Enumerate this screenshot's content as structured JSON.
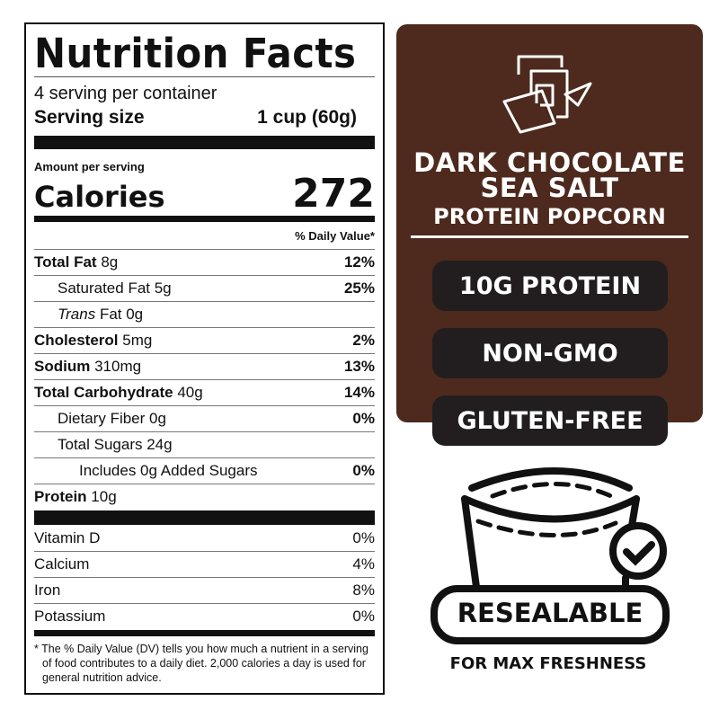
{
  "nutrition": {
    "title": "Nutrition Facts",
    "servings": "4 serving per container",
    "serving_size_label": "Serving size",
    "serving_size_value": "1 cup (60g)",
    "amount_per_serving": "Amount per serving",
    "calories_label": "Calories",
    "calories_value": "272",
    "dv_header": "% Daily Value*",
    "rows": [
      {
        "bold": "Total Fat",
        "amount": "8g",
        "dv": "12%"
      },
      {
        "label": "Saturated Fat 5g",
        "dv": "25%"
      },
      {
        "italic": "Trans",
        "label": "Fat 0g",
        "dv": ""
      },
      {
        "bold": "Cholesterol",
        "amount": "5mg",
        "dv": "2%"
      },
      {
        "bold": "Sodium",
        "amount": "310mg",
        "dv": "13%"
      },
      {
        "bold": "Total Carbohydrate",
        "amount": "40g",
        "dv": "14%"
      },
      {
        "label": "Dietary Fiber 0g",
        "dv": "0%"
      },
      {
        "label": "Total Sugars 24g",
        "dv": ""
      },
      {
        "label": "Includes 0g Added Sugars",
        "dv": "0%"
      },
      {
        "bold": "Protein",
        "amount": "10g",
        "dv": ""
      }
    ],
    "vitamins": [
      {
        "label": "Vitamin D",
        "dv": "0%"
      },
      {
        "label": "Calcium",
        "dv": "4%"
      },
      {
        "label": "Iron",
        "dv": "8%"
      },
      {
        "label": "Potassium",
        "dv": "0%"
      }
    ],
    "footnote": "* The % Daily Value (DV) tells you how much a nutrient in a serving of food contributes to a daily diet. 2,000 calories a day is used for general nutrition advice."
  },
  "product": {
    "line1": "DARK CHOCOLATE",
    "line2": "SEA SALT",
    "line3": "PROTEIN POPCORN",
    "badges": [
      "10G PROTEIN",
      "NON-GMO",
      "GLUTEN-FREE"
    ],
    "brown_color": "#4d2a1d",
    "icon": "chocolate-pieces-icon"
  },
  "reseal": {
    "label": "RESEALABLE",
    "sub": "FOR MAX FRESHNESS",
    "icon": "resealable-bag-check-icon"
  }
}
